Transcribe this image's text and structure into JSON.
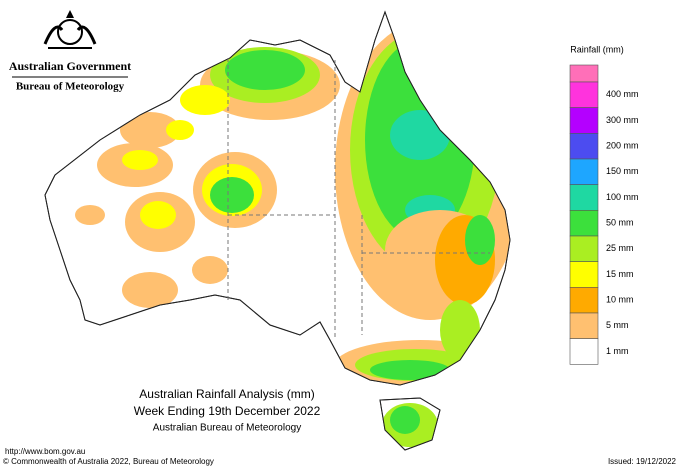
{
  "header": {
    "government": "Australian Government",
    "bureau": "Bureau of Meteorology"
  },
  "legend": {
    "title": "Rainfall (mm)",
    "items": [
      {
        "label": null,
        "color": "#ff6fb8"
      },
      {
        "label": "400 mm",
        "color": "#ff33dd"
      },
      {
        "label": "300 mm",
        "color": "#b400ff"
      },
      {
        "label": "200 mm",
        "color": "#4c4cf0"
      },
      {
        "label": "150 mm",
        "color": "#1ea6ff"
      },
      {
        "label": "100 mm",
        "color": "#1fd8a2"
      },
      {
        "label": "50 mm",
        "color": "#3ce03c"
      },
      {
        "label": "25 mm",
        "color": "#aaee22"
      },
      {
        "label": "15 mm",
        "color": "#ffff00"
      },
      {
        "label": "10 mm",
        "color": "#ffaa00"
      },
      {
        "label": "5 mm",
        "color": "#ffc070"
      },
      {
        "label": "1 mm",
        "color": "#ffffff"
      }
    ]
  },
  "map_title": {
    "lines": [
      "Australian Rainfall Analysis (mm)",
      "Week Ending 19th December 2022",
      "Australian Bureau of Meteorology"
    ]
  },
  "footer": {
    "url": "http://www.bom.gov.au",
    "copyright": "© Commonwealth of Australia 2022, Bureau of Meteorology",
    "issued": "Issued: 19/12/2022"
  }
}
